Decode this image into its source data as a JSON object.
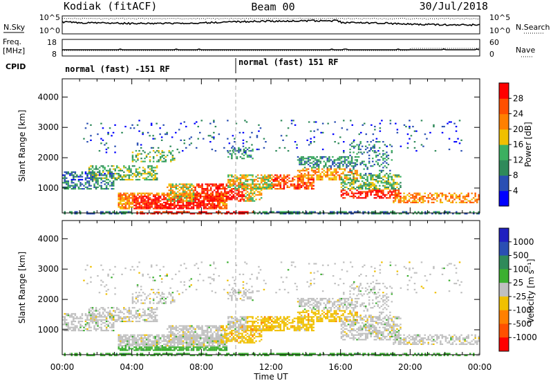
{
  "header": {
    "station": "Kodiak (fitACF)",
    "beam": "Beam 00",
    "date": "30/Jul/2018"
  },
  "top_panels": {
    "nsky_label": "N.Sky",
    "nsearch_label": "N.Search",
    "freq_label_1": "Freq.",
    "freq_label_2": "[MHz]",
    "nave_label": "Nave",
    "cpid_label": "CPID",
    "noise_ticks_left": [
      "10^5",
      "10^0"
    ],
    "noise_ticks_right": [
      "10^5",
      "10^0"
    ],
    "freq_ticks": [
      "18",
      "8"
    ],
    "nave_ticks": [
      "60",
      "0"
    ],
    "cpid_modes": [
      "normal (fast) -151 RF",
      "normal (fast) 151 RF"
    ]
  },
  "chart_data": [
    {
      "type": "heatmap",
      "title": "",
      "xlabel": "",
      "ylabel": "Slant Range [km]",
      "ylim": [
        180,
        4600
      ],
      "yticks": [
        "1000",
        "2000",
        "3000",
        "4000"
      ],
      "colorbar_label": "Power [dB]",
      "colorbar_ticks": [
        "4",
        "8",
        "12",
        "16",
        "20",
        "24",
        "28"
      ],
      "colors": [
        "#0000ff",
        "#2a4fb3",
        "#2f8a5a",
        "#3cb060",
        "#f0c000",
        "#ff8000",
        "#ff5000",
        "#ff0000"
      ]
    },
    {
      "type": "heatmap",
      "title": "",
      "xlabel": "Time UT",
      "ylabel": "Slant Range [km]",
      "ylim": [
        180,
        4600
      ],
      "yticks": [
        "1000",
        "2000",
        "3000",
        "4000"
      ],
      "xticks": [
        "00:00",
        "04:00",
        "08:00",
        "12:00",
        "16:00",
        "20:00",
        "00:00"
      ],
      "colorbar_label": "Velocity [m s⁻¹]",
      "colorbar_ticks": [
        "1000",
        "500",
        "100",
        "25",
        "-25",
        "-100",
        "-500",
        "-1000"
      ],
      "colors": [
        "#2020c0",
        "#2a4fb3",
        "#2f8a5a",
        "#3cb030",
        "#c0c0c0",
        "#f0c000",
        "#ff8000",
        "#ff5000",
        "#ff0000"
      ]
    }
  ]
}
